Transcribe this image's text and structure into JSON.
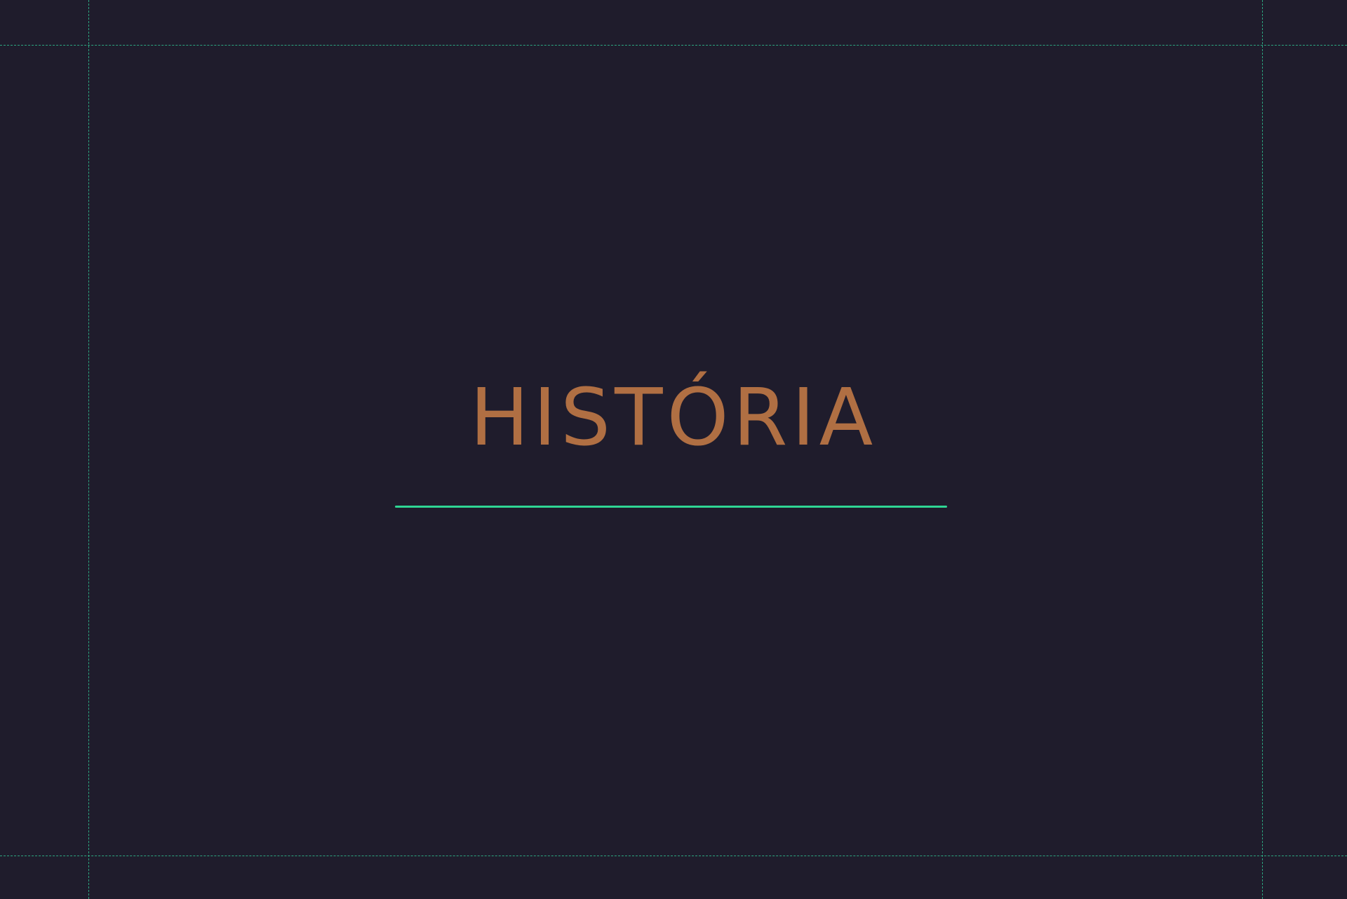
{
  "slide": {
    "title": "HISTÓRIA"
  },
  "colors": {
    "background": "#1f1c2c",
    "title": "#b06f43",
    "accent": "#2fd694",
    "guides": "#2fbf8f"
  }
}
